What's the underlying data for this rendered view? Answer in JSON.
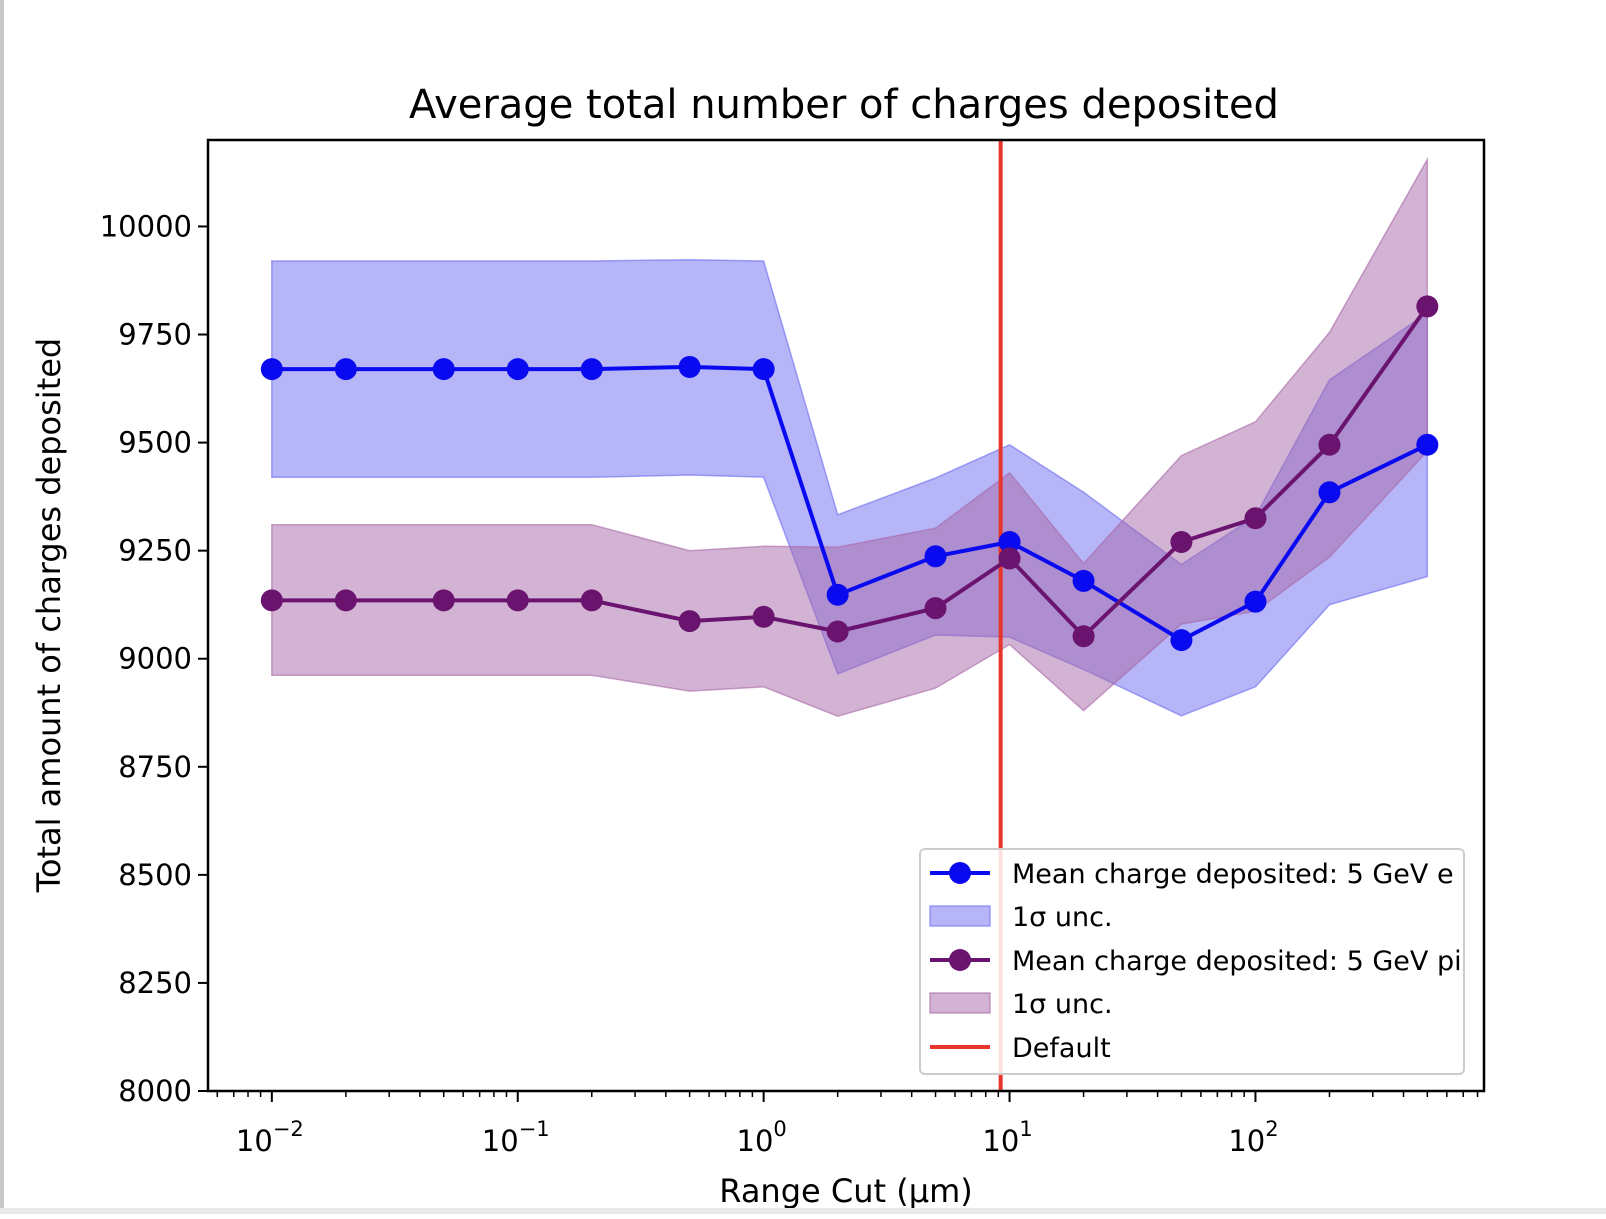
{
  "chart_data": {
    "type": "line",
    "title": "Average total number of charges deposited",
    "xlabel": "Range Cut (μm)",
    "ylabel": "Total amount of charges deposited",
    "xscale": "log",
    "xlim": [
      0.0055,
      850
    ],
    "ylim": [
      8000,
      10200
    ],
    "yticks": [
      8000,
      8250,
      8500,
      8750,
      9000,
      9250,
      9500,
      9750,
      10000
    ],
    "yticklabels": [
      "8000",
      "8250",
      "8500",
      "8750",
      "9000",
      "9250",
      "9500",
      "9750",
      "10000"
    ],
    "xticks": [
      0.01,
      0.1,
      1,
      10,
      100
    ],
    "xtick_base": "10",
    "xtick_exponents": [
      "−2",
      "−1",
      "0",
      "1",
      "2"
    ],
    "x": [
      0.01,
      0.02,
      0.05,
      0.1,
      0.2,
      0.5,
      1,
      2,
      5,
      10,
      20,
      50,
      100,
      200,
      500
    ],
    "series": [
      {
        "name": "Mean charge deposited: 5 GeV e",
        "color": "#0a0af0",
        "values": [
          9670,
          9670,
          9670,
          9670,
          9670,
          9675,
          9670,
          9148,
          9237,
          9270,
          9180,
          9043,
          9132,
          9385,
          9495
        ],
        "band_label": "1σ unc.",
        "band_color": "#6b6bf0",
        "band_lower": [
          9420,
          9420,
          9420,
          9420,
          9420,
          9425,
          9420,
          8965,
          9055,
          9050,
          8975,
          8868,
          8935,
          9125,
          9190
        ],
        "band_upper": [
          9920,
          9920,
          9920,
          9920,
          9920,
          9923,
          9920,
          9333,
          9418,
          9495,
          9385,
          9218,
          9330,
          9645,
          9800
        ]
      },
      {
        "name": "Mean charge deposited: 5 GeV pi",
        "color": "#6a1470",
        "values": [
          9135,
          9135,
          9135,
          9135,
          9135,
          9087,
          9097,
          9063,
          9117,
          9232,
          9052,
          9270,
          9325,
          9495,
          9815
        ],
        "band_label": "1σ unc.",
        "band_color": "#a868a8",
        "band_lower": [
          8962,
          8962,
          8962,
          8962,
          8962,
          8925,
          8935,
          8867,
          8932,
          9033,
          8880,
          9080,
          9110,
          9235,
          9480
        ],
        "band_upper": [
          9310,
          9310,
          9310,
          9310,
          9310,
          9250,
          9260,
          9258,
          9302,
          9430,
          9220,
          9470,
          9548,
          9755,
          10155
        ]
      }
    ],
    "vline": {
      "x": 9.2,
      "label": "Default",
      "color": "#e8352a"
    },
    "legend": {
      "position": "lower right",
      "entries": [
        {
          "label": "Mean charge deposited: 5 GeV e",
          "kind": "line-marker",
          "color": "#0a0af0"
        },
        {
          "label": "1σ unc.",
          "kind": "patch",
          "color": "#6b6bf0"
        },
        {
          "label": "Mean charge deposited: 5 GeV pi",
          "kind": "line-marker",
          "color": "#6a1470"
        },
        {
          "label": "1σ unc.",
          "kind": "patch",
          "color": "#a868a8"
        },
        {
          "label": "Default",
          "kind": "line",
          "color": "#e8352a"
        }
      ]
    },
    "grid": false
  }
}
